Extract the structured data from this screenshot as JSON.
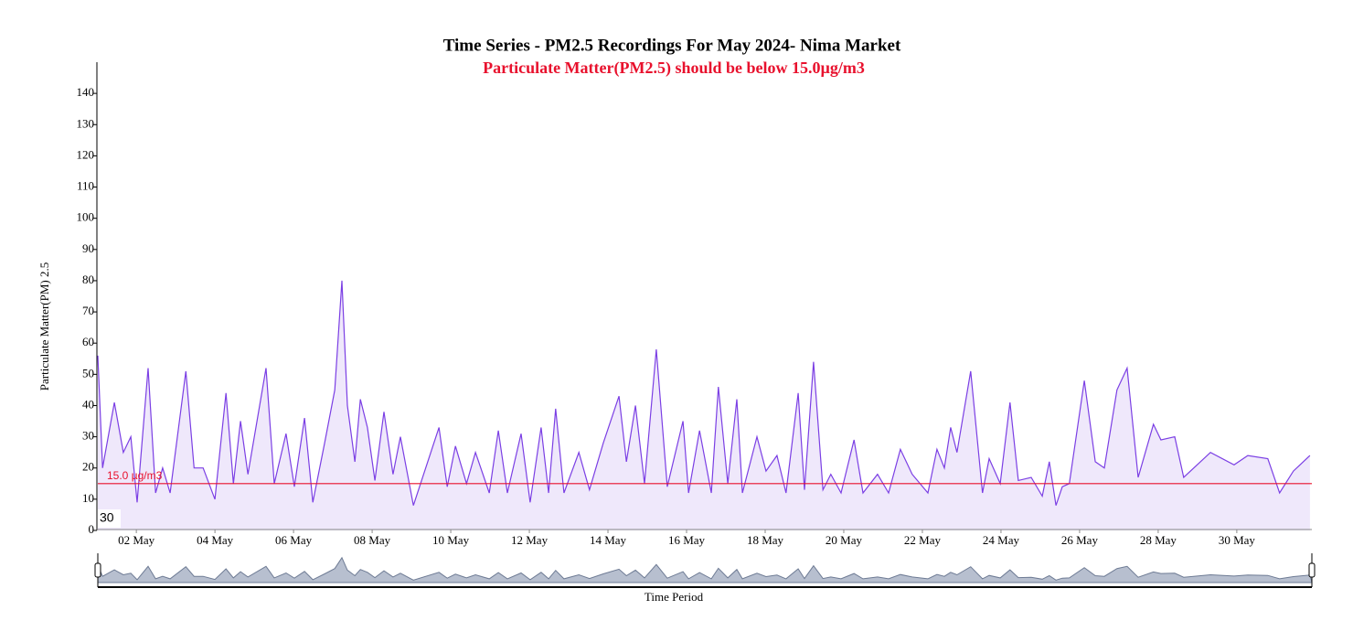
{
  "chart_data": {
    "type": "line",
    "title": "Time Series - PM2.5 Recordings For May 2024- Nima Market",
    "subtitle": "Particulate Matter(PM2.5) should be below 15.0µg/m3",
    "xlabel": "Time Period",
    "ylabel": "Particulate Matter(PM) 2.5",
    "brush_label": "30",
    "color": "#7b3fe4",
    "fill": "#efe8fb",
    "threshold": {
      "value": 15,
      "label": "15.0 µg/m3",
      "color": "#e8112d"
    },
    "xlim": [
      1.02,
      31.91
    ],
    "ylim": [
      0,
      150
    ],
    "xticks": [
      {
        "value": 2,
        "label": "02 May"
      },
      {
        "value": 4,
        "label": "04 May"
      },
      {
        "value": 6,
        "label": "06 May"
      },
      {
        "value": 8,
        "label": "08 May"
      },
      {
        "value": 10,
        "label": "10 May"
      },
      {
        "value": 12,
        "label": "12 May"
      },
      {
        "value": 14,
        "label": "14 May"
      },
      {
        "value": 16,
        "label": "16 May"
      },
      {
        "value": 18,
        "label": "18 May"
      },
      {
        "value": 20,
        "label": "20 May"
      },
      {
        "value": 22,
        "label": "22 May"
      },
      {
        "value": 24,
        "label": "24 May"
      },
      {
        "value": 26,
        "label": "26 May"
      },
      {
        "value": 28,
        "label": "28 May"
      },
      {
        "value": 30,
        "label": "30 May"
      }
    ],
    "yticks": [
      0,
      10,
      20,
      30,
      40,
      50,
      60,
      70,
      80,
      90,
      100,
      110,
      120,
      130,
      140
    ],
    "x": [
      1.02,
      1.14,
      1.44,
      1.67,
      1.86,
      2.02,
      2.3,
      2.49,
      2.67,
      2.86,
      3.26,
      3.47,
      3.7,
      4.0,
      4.28,
      4.47,
      4.65,
      4.84,
      5.3,
      5.51,
      5.81,
      6.02,
      6.28,
      6.49,
      6.79,
      7.05,
      7.23,
      7.37,
      7.56,
      7.7,
      7.88,
      8.07,
      8.3,
      8.53,
      8.72,
      9.05,
      9.7,
      9.91,
      10.12,
      10.4,
      10.63,
      10.98,
      11.21,
      11.44,
      11.79,
      12.02,
      12.3,
      12.49,
      12.67,
      12.88,
      13.26,
      13.53,
      13.88,
      14.28,
      14.47,
      14.7,
      14.93,
      15.23,
      15.51,
      15.91,
      16.05,
      16.33,
      16.63,
      16.81,
      17.05,
      17.28,
      17.42,
      17.79,
      18.02,
      18.3,
      18.53,
      18.84,
      19.0,
      19.23,
      19.47,
      19.67,
      19.93,
      20.26,
      20.49,
      20.86,
      21.14,
      21.44,
      21.74,
      22.14,
      22.37,
      22.56,
      22.72,
      22.88,
      23.23,
      23.53,
      23.7,
      23.98,
      24.23,
      24.44,
      24.77,
      25.05,
      25.23,
      25.4,
      25.56,
      25.74,
      26.12,
      26.4,
      26.63,
      26.95,
      27.21,
      27.49,
      27.88,
      28.07,
      28.42,
      28.65,
      29.33,
      29.93,
      30.28,
      30.79,
      31.09,
      31.44,
      31.86
    ],
    "values": [
      56,
      20,
      41,
      25,
      30,
      9,
      52,
      12,
      20,
      12,
      51,
      20,
      20,
      10,
      44,
      15,
      35,
      18,
      52,
      15,
      31,
      14,
      36,
      9,
      28,
      45,
      80,
      40,
      22,
      42,
      33,
      16,
      38,
      18,
      30,
      8,
      33,
      14,
      27,
      15,
      25,
      12,
      32,
      12,
      31,
      9,
      33,
      12,
      39,
      12,
      25,
      13,
      28,
      43,
      22,
      40,
      15,
      58,
      14,
      35,
      12,
      32,
      12,
      46,
      15,
      42,
      12,
      30,
      19,
      24,
      12,
      44,
      13,
      54,
      13,
      18,
      12,
      29,
      12,
      18,
      12,
      26,
      18,
      12,
      26,
      20,
      33,
      25,
      51,
      12,
      23,
      15,
      41,
      16,
      17,
      11,
      22,
      8,
      14,
      15,
      48,
      22,
      20,
      45,
      52,
      17,
      34,
      29,
      30,
      17,
      25,
      21,
      24,
      23,
      12,
      19,
      24
    ]
  }
}
